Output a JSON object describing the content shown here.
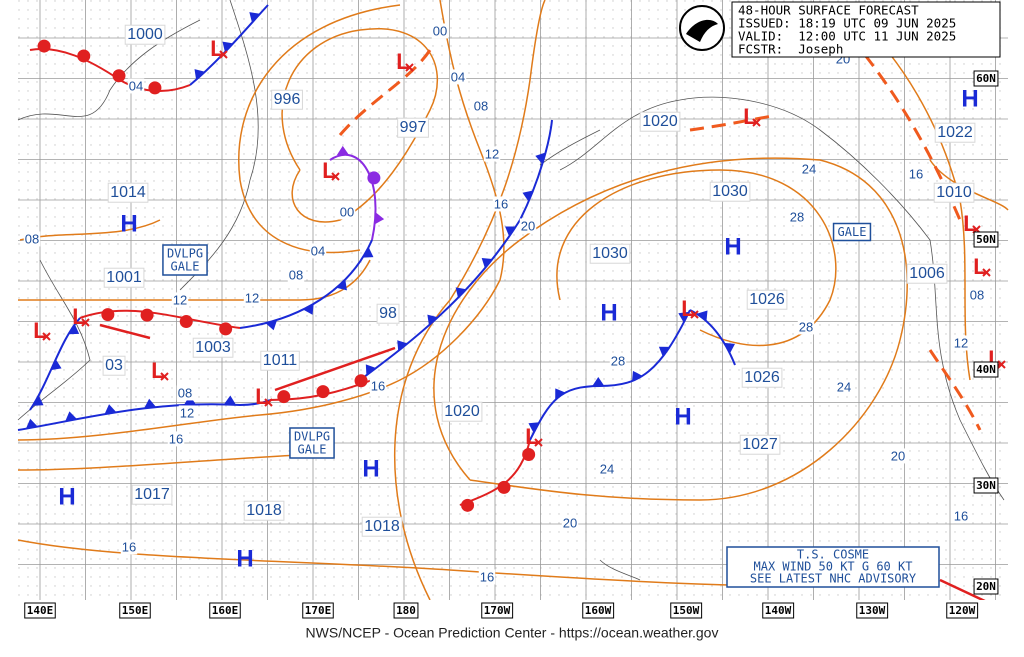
{
  "header": {
    "lines": [
      "48-HOUR SURFACE FORECAST",
      "ISSUED: 18:19 UTC 09 JUN 2025",
      "VALID:  12:00 UTC 11 JUN 2025",
      "FCSTR:  Joseph"
    ]
  },
  "footer": "NWS/NCEP - Ocean Prediction Center - https://ocean.weather.gov",
  "map": {
    "longitude_labels": [
      "140E",
      "150E",
      "160E",
      "170E",
      "180",
      "170W",
      "160W",
      "150W",
      "140W",
      "130W",
      "120W"
    ],
    "latitude_labels": [
      "60N",
      "50N",
      "40N",
      "30N",
      "20N"
    ],
    "pressure_labels": [
      "1000",
      "996",
      "997",
      "1014",
      "1001",
      "1003",
      "1011",
      "98",
      "03",
      "1020",
      "1030",
      "1020",
      "1030",
      "1026",
      "1026",
      "1027",
      "1017",
      "1018",
      "1018",
      "1022",
      "1010",
      "1006"
    ],
    "isobar_labels": [
      "04",
      "00",
      "04",
      "08",
      "12",
      "16",
      "20",
      "08",
      "00",
      "04",
      "08",
      "12",
      "12",
      "08",
      "12",
      "16",
      "16",
      "28",
      "24",
      "20",
      "16",
      "16",
      "24",
      "28",
      "28",
      "24",
      "20",
      "16",
      "16",
      "08",
      "12",
      "20"
    ],
    "high_symbol": "H",
    "low_symbol": "L",
    "gale_boxes": [
      [
        "DVLPG",
        "GALE"
      ],
      [
        "DVLPG",
        "GALE"
      ],
      [
        "GALE"
      ]
    ],
    "storm_box": [
      "T.S. COSME",
      "MAX WIND 50 KT G 60 KT",
      "SEE LATEST NHC ADVISORY"
    ]
  }
}
